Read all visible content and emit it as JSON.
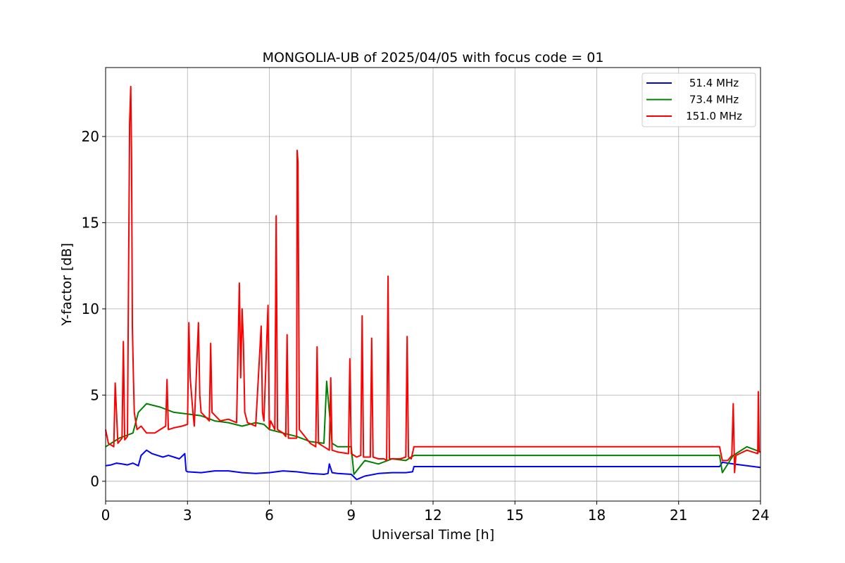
{
  "chart_data": {
    "type": "line",
    "title": "MONGOLIA-UB of 2025/04/05 with focus code = 01",
    "xlabel": "Universal Time [h]",
    "ylabel": "Y-factor [dB]",
    "xlim": [
      0,
      24
    ],
    "ylim": [
      -1.15,
      24.0
    ],
    "xticks": [
      0,
      3,
      6,
      9,
      12,
      15,
      18,
      21,
      24
    ],
    "yticks": [
      0,
      5,
      10,
      15,
      20
    ],
    "grid": true,
    "legend_position": "top-right",
    "series": [
      {
        "name": "51.4 MHz",
        "color": "#0000ff",
        "x": [
          0,
          0.2,
          0.4,
          0.6,
          0.8,
          1.0,
          1.2,
          1.3,
          1.5,
          1.7,
          1.9,
          2.1,
          2.3,
          2.5,
          2.7,
          2.9,
          2.95,
          3.0,
          3.5,
          4.0,
          4.5,
          5.0,
          5.5,
          6.0,
          6.5,
          7.0,
          7.5,
          8.0,
          8.15,
          8.2,
          8.3,
          8.5,
          9.0,
          9.2,
          9.5,
          10.0,
          10.5,
          11.0,
          11.25,
          11.3,
          22.5,
          22.6,
          23.0,
          23.5,
          24.0
        ],
        "y": [
          0.9,
          0.95,
          1.05,
          1.0,
          0.95,
          1.05,
          0.9,
          1.5,
          1.8,
          1.6,
          1.5,
          1.4,
          1.5,
          1.4,
          1.3,
          1.6,
          0.6,
          0.55,
          0.5,
          0.6,
          0.6,
          0.5,
          0.45,
          0.5,
          0.6,
          0.55,
          0.45,
          0.4,
          0.45,
          1.0,
          0.5,
          0.45,
          0.4,
          0.1,
          0.3,
          0.45,
          0.5,
          0.5,
          0.55,
          0.85,
          0.85,
          1.1,
          1.0,
          0.9,
          0.8
        ]
      },
      {
        "name": "73.4 MHz",
        "color": "#008000",
        "x": [
          0,
          0.5,
          1.0,
          1.2,
          1.5,
          2.0,
          2.5,
          3.0,
          3.5,
          4.0,
          4.5,
          5.0,
          5.5,
          5.8,
          6.0,
          6.5,
          7.0,
          7.5,
          8.0,
          8.1,
          8.3,
          8.5,
          9.0,
          9.1,
          9.5,
          10.0,
          10.5,
          11.0,
          11.3,
          22.5,
          22.6,
          23.0,
          23.5,
          24.0
        ],
        "y": [
          2.0,
          2.5,
          2.8,
          4.0,
          4.5,
          4.3,
          4.0,
          3.9,
          3.8,
          3.5,
          3.4,
          3.2,
          3.4,
          3.3,
          3.0,
          2.8,
          2.6,
          2.3,
          2.2,
          5.8,
          2.2,
          2.0,
          2.0,
          0.4,
          1.2,
          1.0,
          1.3,
          1.2,
          1.5,
          1.5,
          0.5,
          1.5,
          2.0,
          1.7
        ]
      },
      {
        "name": "151.0 MHz",
        "color": "#ff0000",
        "x": [
          0,
          0.1,
          0.3,
          0.35,
          0.45,
          0.6,
          0.65,
          0.7,
          0.8,
          0.88,
          0.92,
          0.95,
          0.98,
          1.02,
          1.05,
          1.1,
          1.15,
          1.3,
          1.5,
          1.8,
          2.0,
          2.2,
          2.25,
          2.3,
          2.5,
          2.8,
          3.0,
          3.05,
          3.1,
          3.2,
          3.25,
          3.4,
          3.45,
          3.5,
          3.8,
          3.85,
          3.9,
          4.2,
          4.5,
          4.8,
          4.9,
          4.95,
          5.0,
          5.05,
          5.1,
          5.2,
          5.5,
          5.7,
          5.75,
          5.8,
          5.95,
          6.0,
          6.05,
          6.2,
          6.25,
          6.3,
          6.5,
          6.6,
          6.65,
          6.7,
          7.0,
          7.02,
          7.05,
          7.1,
          7.5,
          7.7,
          7.75,
          7.8,
          8.0,
          8.2,
          8.25,
          8.3,
          8.5,
          8.9,
          8.95,
          9.0,
          9.2,
          9.35,
          9.4,
          9.45,
          9.7,
          9.75,
          9.8,
          10.0,
          10.2,
          10.3,
          10.35,
          10.4,
          10.8,
          11.0,
          11.05,
          11.1,
          11.2,
          11.3,
          22.5,
          22.6,
          22.8,
          22.95,
          23.0,
          23.05,
          23.1,
          23.5,
          23.9,
          23.92,
          23.95,
          24.0
        ],
        "y": [
          3.0,
          2.2,
          2.0,
          5.7,
          2.2,
          2.5,
          8.1,
          2.4,
          2.6,
          20.8,
          22.9,
          19.0,
          9.0,
          6.0,
          4.0,
          3.5,
          3.0,
          3.2,
          2.8,
          2.8,
          3.0,
          3.2,
          5.9,
          3.0,
          3.1,
          3.2,
          3.3,
          9.2,
          6.0,
          4.0,
          3.2,
          9.2,
          5.0,
          4.0,
          3.5,
          8.0,
          4.0,
          3.5,
          3.6,
          3.4,
          11.5,
          6.0,
          10.0,
          8.0,
          4.0,
          3.4,
          3.2,
          9.0,
          4.0,
          3.5,
          10.2,
          3.0,
          3.5,
          3.0,
          15.4,
          3.0,
          2.8,
          2.6,
          8.5,
          2.5,
          2.5,
          19.2,
          18.5,
          3.0,
          2.2,
          2.0,
          7.8,
          2.2,
          2.0,
          1.8,
          6.0,
          1.8,
          1.7,
          1.6,
          7.1,
          1.6,
          1.4,
          1.5,
          9.6,
          1.4,
          1.4,
          8.3,
          1.4,
          1.3,
          1.3,
          1.2,
          11.9,
          1.3,
          1.3,
          1.4,
          8.4,
          1.4,
          1.3,
          2.0,
          2.0,
          1.2,
          1.2,
          1.5,
          4.5,
          0.5,
          1.5,
          1.8,
          1.6,
          5.2,
          1.7,
          1.7
        ]
      }
    ]
  }
}
